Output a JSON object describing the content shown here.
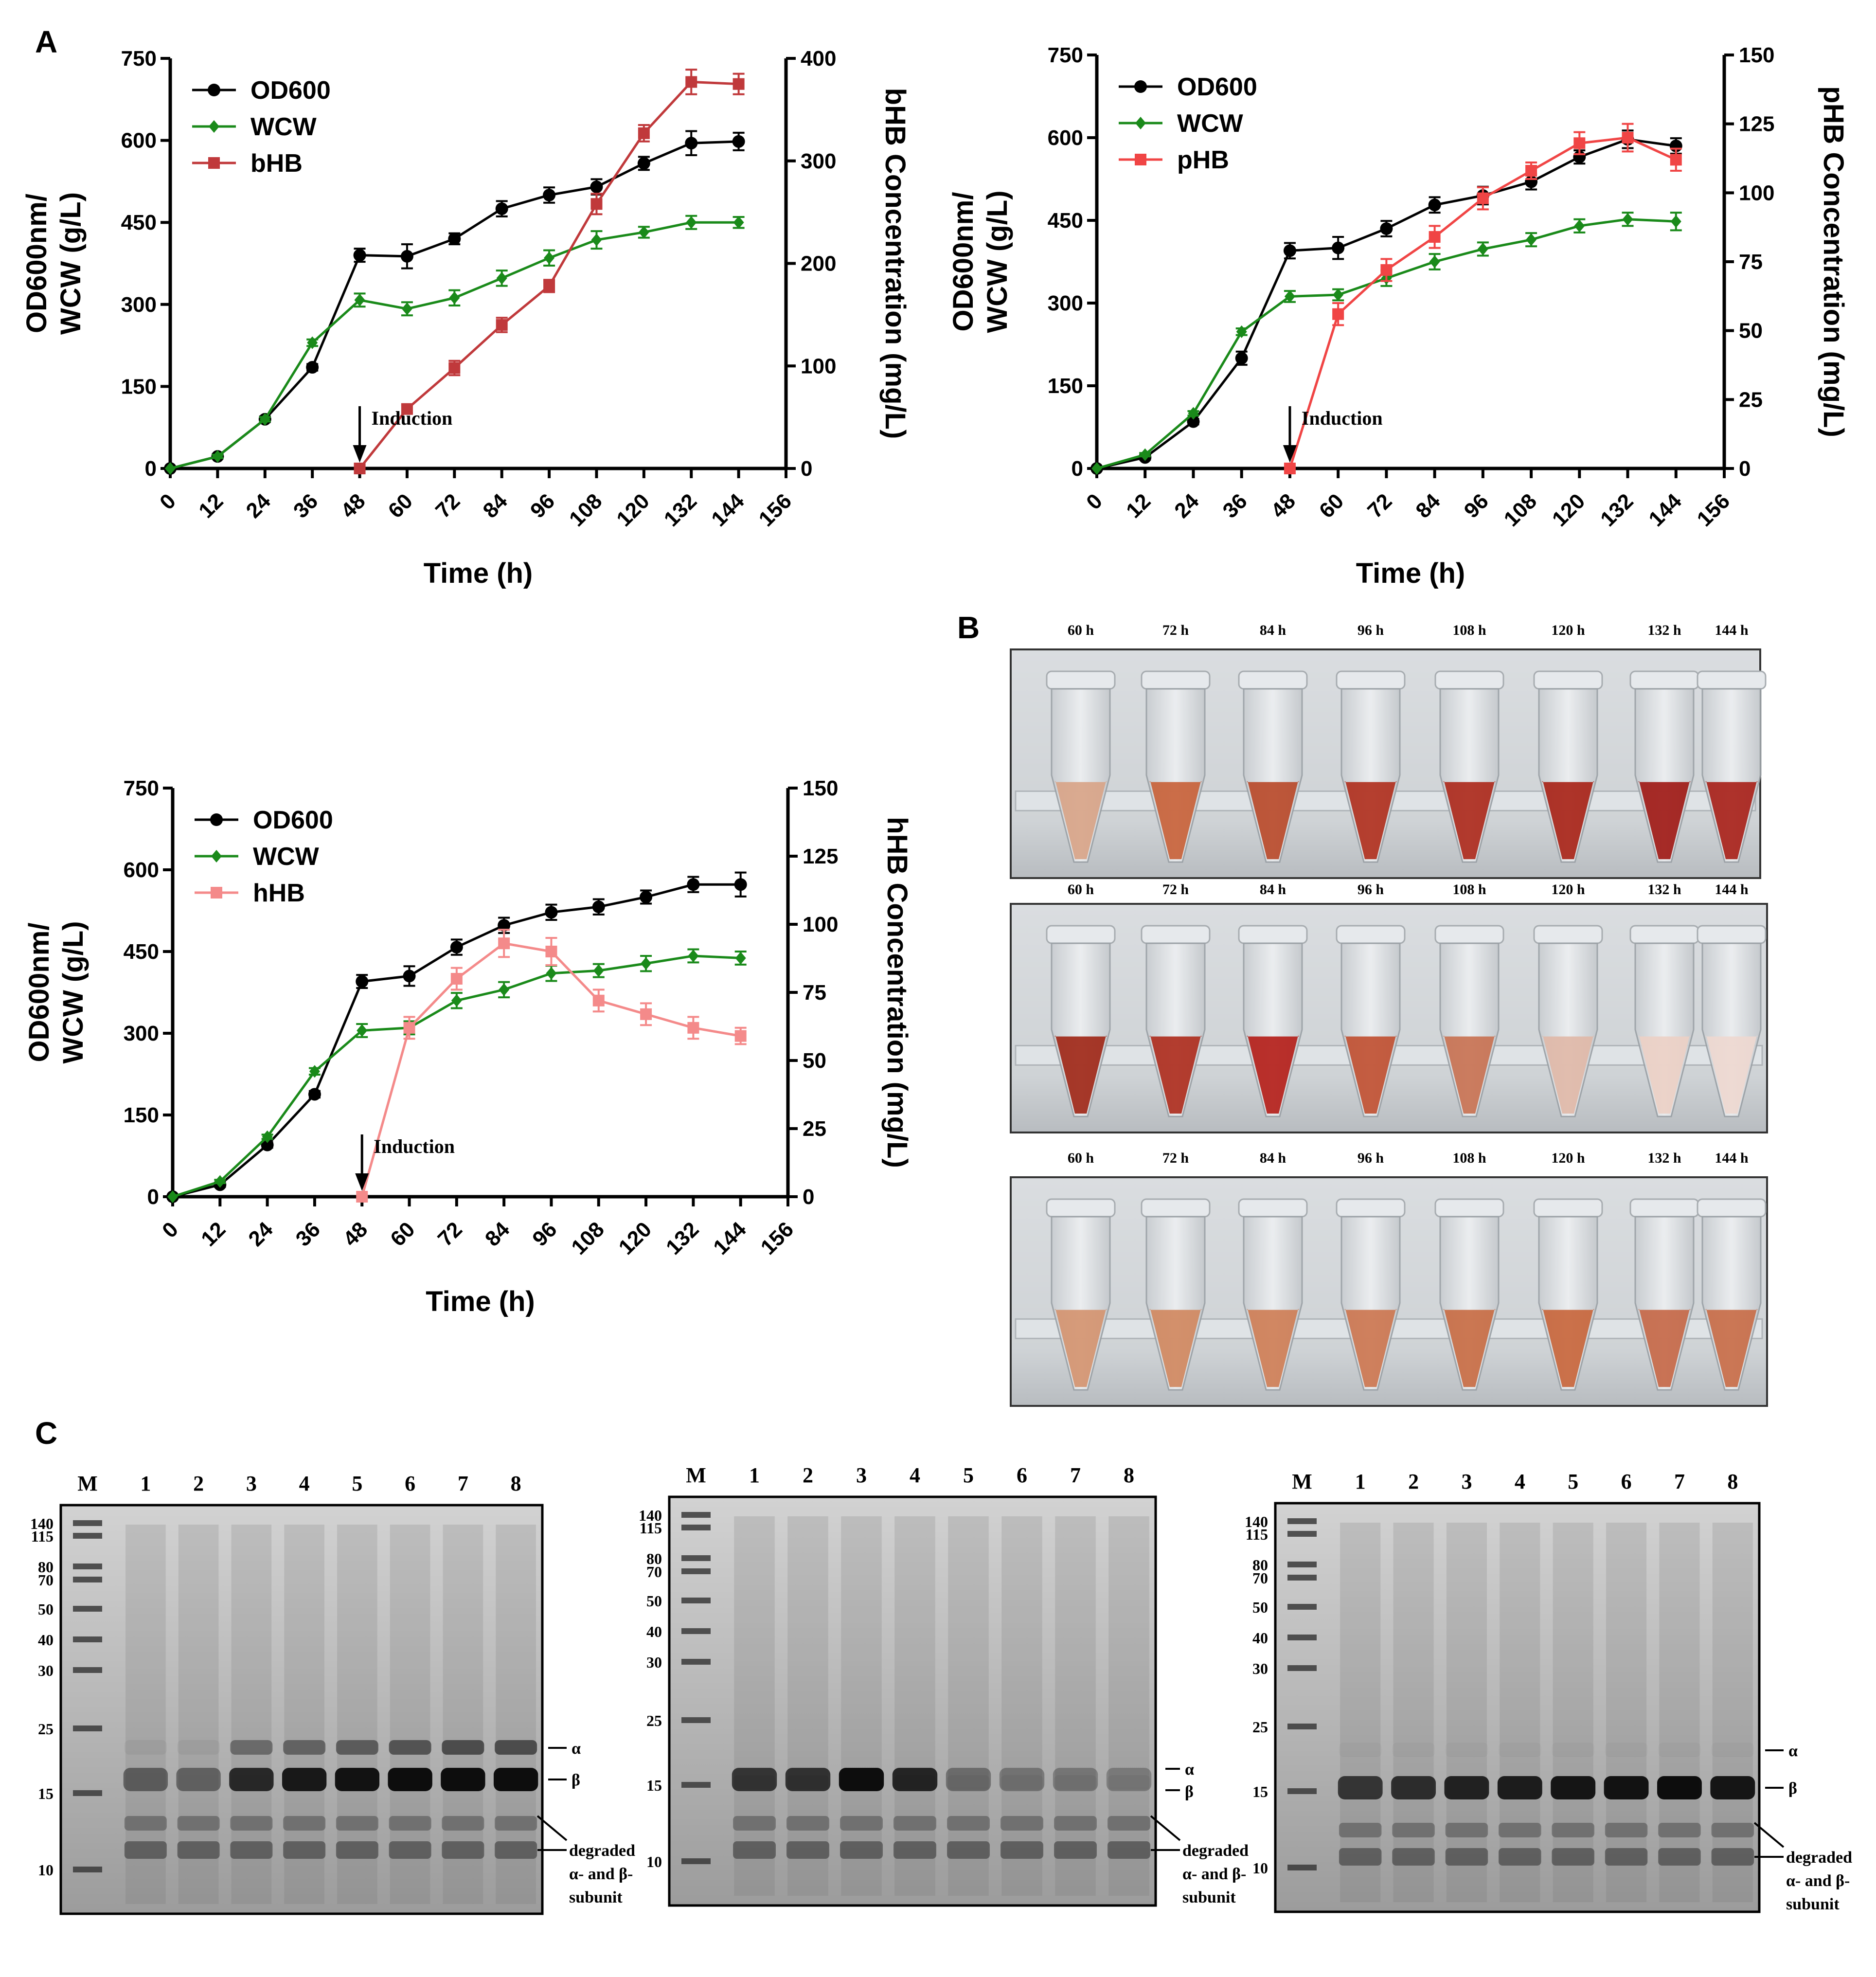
{
  "panels": {
    "A": "A",
    "B": "B",
    "C": "C"
  },
  "chart_data": [
    {
      "type": "line",
      "title": "",
      "xlabel": "Time (h)",
      "ylabel": "OD600nm/ WCW (g/L)",
      "ylabel_lines": [
        "OD600nm/",
        "WCW (g/L)"
      ],
      "y2label": "bHB Concentration (mg/L)",
      "xlim": [
        0,
        156
      ],
      "ylim": [
        0,
        750
      ],
      "y2lim": [
        0,
        400
      ],
      "xticks": [
        "0",
        "12",
        "24",
        "36",
        "48",
        "60",
        "72",
        "84",
        "96",
        "108",
        "120",
        "132",
        "144",
        "156"
      ],
      "yticks": [
        "0",
        "150",
        "300",
        "450",
        "600",
        "750"
      ],
      "y2ticks": [
        "0",
        "100",
        "200",
        "300",
        "400"
      ],
      "annotation": "Induction",
      "annotation_x": 48,
      "legend_position": "top-left",
      "series": [
        {
          "name": "OD600",
          "axis": "left",
          "color": "#000000",
          "marker": "circle",
          "x": [
            0,
            12,
            24,
            36,
            48,
            60,
            72,
            84,
            96,
            108,
            120,
            132,
            144
          ],
          "values": [
            0,
            22,
            90,
            185,
            390,
            388,
            420,
            475,
            500,
            515,
            558,
            595,
            598
          ],
          "err": [
            0,
            4,
            5,
            6,
            12,
            22,
            10,
            14,
            14,
            14,
            12,
            22,
            16
          ]
        },
        {
          "name": "WCW",
          "axis": "left",
          "color": "#1a8a1a",
          "marker": "diamond",
          "x": [
            0,
            12,
            24,
            36,
            48,
            60,
            72,
            84,
            96,
            108,
            120,
            132,
            144
          ],
          "values": [
            0,
            22,
            90,
            230,
            308,
            292,
            312,
            348,
            385,
            418,
            432,
            450,
            450
          ],
          "err": [
            0,
            3,
            4,
            6,
            12,
            12,
            14,
            14,
            14,
            16,
            10,
            12,
            10
          ]
        },
        {
          "name": "bHB",
          "axis": "right",
          "color": "#c0393b",
          "marker": "square",
          "x": [
            48,
            60,
            72,
            84,
            96,
            108,
            120,
            132,
            144
          ],
          "values": [
            0,
            58,
            98,
            140,
            178,
            258,
            327,
            377,
            375
          ],
          "err": [
            0,
            4,
            7,
            7,
            6,
            10,
            8,
            12,
            10
          ]
        }
      ]
    },
    {
      "type": "line",
      "title": "",
      "xlabel": "Time (h)",
      "ylabel": "OD600nm/ WCW (g/L)",
      "ylabel_lines": [
        "OD600nm/",
        "WCW (g/L)"
      ],
      "y2label": "pHB Concentration (mg/L)",
      "xlim": [
        0,
        156
      ],
      "ylim": [
        0,
        750
      ],
      "y2lim": [
        0,
        150
      ],
      "xticks": [
        "0",
        "12",
        "24",
        "36",
        "48",
        "60",
        "72",
        "84",
        "96",
        "108",
        "120",
        "132",
        "144",
        "156"
      ],
      "yticks": [
        "0",
        "150",
        "300",
        "450",
        "600",
        "750"
      ],
      "y2ticks": [
        "0",
        "25",
        "50",
        "75",
        "100",
        "125",
        "150"
      ],
      "annotation": "Induction",
      "annotation_x": 48,
      "legend_position": "top-left",
      "series": [
        {
          "name": "OD600",
          "axis": "left",
          "color": "#000000",
          "marker": "circle",
          "x": [
            0,
            12,
            24,
            36,
            48,
            60,
            72,
            84,
            96,
            108,
            120,
            132,
            144
          ],
          "values": [
            0,
            20,
            85,
            200,
            395,
            400,
            435,
            478,
            495,
            520,
            565,
            597,
            585
          ],
          "err": [
            0,
            4,
            5,
            12,
            14,
            20,
            14,
            14,
            16,
            14,
            12,
            16,
            14
          ]
        },
        {
          "name": "WCW",
          "axis": "left",
          "color": "#1a8a1a",
          "marker": "diamond",
          "x": [
            0,
            12,
            24,
            36,
            48,
            60,
            72,
            84,
            96,
            108,
            120,
            132,
            144
          ],
          "values": [
            0,
            25,
            100,
            248,
            312,
            315,
            345,
            375,
            398,
            415,
            440,
            452,
            448
          ],
          "err": [
            0,
            3,
            4,
            6,
            10,
            10,
            14,
            14,
            12,
            12,
            12,
            12,
            16
          ]
        },
        {
          "name": "pHB",
          "axis": "right",
          "color": "#f04545",
          "marker": "square",
          "x": [
            48,
            60,
            72,
            84,
            96,
            108,
            120,
            132,
            144
          ],
          "values": [
            0,
            56,
            72,
            84,
            98,
            108,
            118,
            120,
            112
          ],
          "err": [
            0,
            4,
            4,
            4,
            4,
            3,
            4,
            5,
            4
          ]
        }
      ]
    },
    {
      "type": "line",
      "title": "",
      "xlabel": "Time (h)",
      "ylabel": "OD600nm/ WCW (g/L)",
      "ylabel_lines": [
        "OD600nm/",
        "WCW (g/L)"
      ],
      "y2label": "hHB Concentration (mg/L)",
      "xlim": [
        0,
        156
      ],
      "ylim": [
        0,
        750
      ],
      "y2lim": [
        0,
        150
      ],
      "xticks": [
        "0",
        "12",
        "24",
        "36",
        "48",
        "60",
        "72",
        "84",
        "96",
        "108",
        "120",
        "132",
        "144",
        "156"
      ],
      "yticks": [
        "0",
        "150",
        "300",
        "450",
        "600",
        "750"
      ],
      "y2ticks": [
        "0",
        "25",
        "50",
        "75",
        "100",
        "125",
        "150"
      ],
      "annotation": "Induction",
      "annotation_x": 48,
      "legend_position": "top-left",
      "series": [
        {
          "name": "OD600",
          "axis": "left",
          "color": "#000000",
          "marker": "circle",
          "x": [
            0,
            12,
            24,
            36,
            48,
            60,
            72,
            84,
            96,
            108,
            120,
            132,
            144
          ],
          "values": [
            0,
            22,
            95,
            188,
            395,
            405,
            458,
            498,
            522,
            532,
            550,
            573,
            573
          ],
          "err": [
            0,
            4,
            5,
            6,
            12,
            18,
            14,
            14,
            14,
            14,
            12,
            14,
            22
          ]
        },
        {
          "name": "WCW",
          "axis": "left",
          "color": "#1a8a1a",
          "marker": "diamond",
          "x": [
            0,
            12,
            24,
            36,
            48,
            60,
            72,
            84,
            96,
            108,
            120,
            132,
            144
          ],
          "values": [
            0,
            28,
            110,
            230,
            305,
            310,
            360,
            380,
            410,
            415,
            428,
            442,
            438
          ],
          "err": [
            0,
            3,
            4,
            6,
            12,
            12,
            14,
            14,
            14,
            12,
            14,
            12,
            12
          ]
        },
        {
          "name": "hHB",
          "axis": "right",
          "color": "#f48a8a",
          "marker": "square",
          "x": [
            48,
            60,
            72,
            84,
            96,
            108,
            120,
            132,
            144
          ],
          "values": [
            0,
            62,
            80,
            93,
            90,
            72,
            67,
            62,
            59
          ],
          "err": [
            0,
            4,
            4,
            5,
            5,
            4,
            4,
            4,
            3
          ]
        }
      ]
    }
  ],
  "panel_b": {
    "time_labels": [
      "60 h",
      "72 h",
      "84 h",
      "96 h",
      "108 h",
      "120 h",
      "132 h",
      "144 h"
    ],
    "rows": [
      {
        "fill_colors": [
          "#d8a488",
          "#c8623a",
          "#b84a2a",
          "#b0301e",
          "#ac2a1c",
          "#a82418",
          "#a01a16",
          "#a8221a"
        ]
      },
      {
        "fill_colors": [
          "#a02818",
          "#ae2e1e",
          "#b4201a",
          "#c05032",
          "#c87252",
          "#e0b8a8",
          "#ecd0c6",
          "#eed8d0"
        ]
      },
      {
        "fill_colors": [
          "#d49470",
          "#d08860",
          "#ce7e56",
          "#cc7650",
          "#c86c44",
          "#c8663c",
          "#c66848",
          "#c86c48"
        ]
      }
    ]
  },
  "panel_c": {
    "marker_label": "M",
    "lane_labels": [
      "1",
      "2",
      "3",
      "4",
      "5",
      "6",
      "7",
      "8"
    ],
    "mw_labels": [
      "140",
      "115",
      "80",
      "70",
      "50",
      "40",
      "30",
      "25",
      "15",
      "10"
    ],
    "gels": [
      {
        "band_labels": {
          "alpha": "α",
          "beta": "β",
          "degraded": [
            "degraded",
            "α- and β-",
            "subunit"
          ]
        },
        "beta_intensity": [
          0.45,
          0.42,
          0.78,
          0.88,
          0.92,
          0.95,
          0.95,
          0.95
        ],
        "alpha_intensity": [
          0.05,
          0.05,
          0.4,
          0.45,
          0.5,
          0.55,
          0.6,
          0.6
        ]
      },
      {
        "band_labels": {
          "alpha": "α",
          "beta": "β",
          "degraded": [
            "degraded",
            "α- and β-",
            "subunit"
          ]
        },
        "beta_intensity": [
          0.7,
          0.72,
          0.95,
          0.8,
          0.35,
          0.3,
          0.28,
          0.25
        ],
        "alpha_intensity": [
          0.05,
          0.05,
          0.05,
          0.05,
          0.05,
          0.05,
          0.05,
          0.05
        ]
      },
      {
        "band_labels": {
          "alpha": "α",
          "beta": "β",
          "degraded": [
            "degraded",
            "α- and β-",
            "subunit"
          ]
        },
        "beta_intensity": [
          0.7,
          0.75,
          0.82,
          0.85,
          0.9,
          0.92,
          0.95,
          0.9
        ],
        "alpha_intensity": [
          0.03,
          0.03,
          0.03,
          0.03,
          0.03,
          0.03,
          0.03,
          0.03
        ]
      }
    ]
  }
}
